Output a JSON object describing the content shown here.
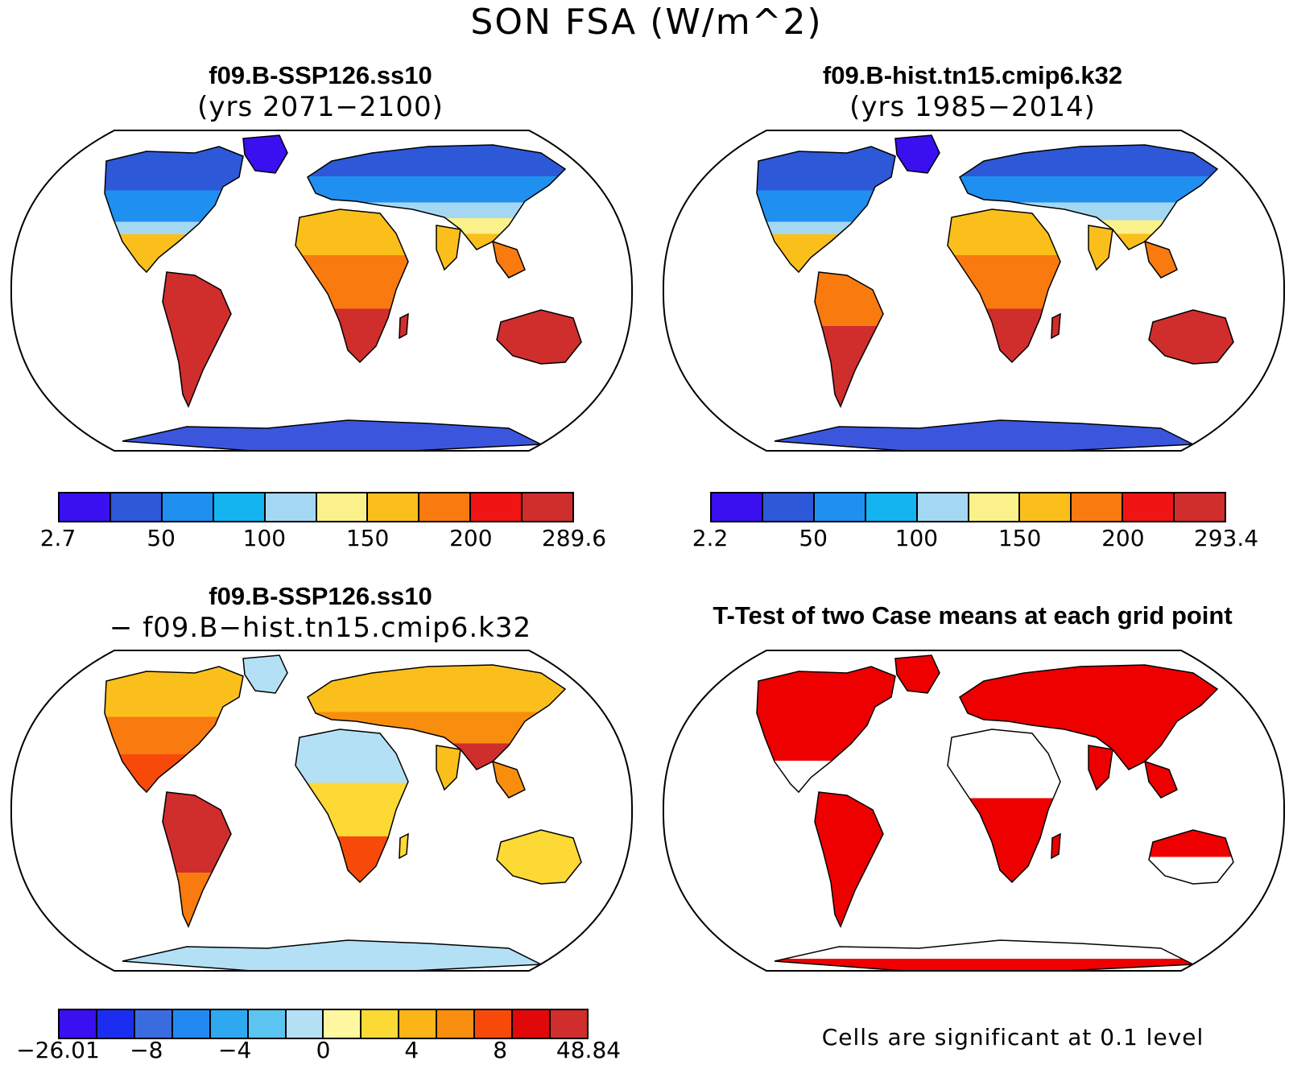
{
  "title": "SON FSA (W/m^2)",
  "panels": {
    "future": {
      "case": "f09.B-SSP126.ss10",
      "years": "(yrs 2071−2100)",
      "colorbar": {
        "colors": [
          "#3a0ff0",
          "#2d58d8",
          "#1f8ff0",
          "#14b4f0",
          "#a4d8f2",
          "#fbf18a",
          "#fbbf1c",
          "#f97a0f",
          "#f01414",
          "#d02d2d"
        ],
        "labels": [
          "2.7",
          "50",
          "100",
          "150",
          "200",
          "289.6"
        ]
      }
    },
    "hist": {
      "case": "f09.B-hist.tn15.cmip6.k32",
      "years": "(yrs 1985−2014)",
      "colorbar": {
        "colors": [
          "#3a0ff0",
          "#2d58d8",
          "#1f8ff0",
          "#14b4f0",
          "#a4d8f2",
          "#fbf18a",
          "#fbbf1c",
          "#f97a0f",
          "#f01414",
          "#d02d2d"
        ],
        "labels": [
          "2.2",
          "50",
          "100",
          "150",
          "200",
          "293.4"
        ]
      }
    },
    "diff": {
      "case": "f09.B-SSP126.ss10",
      "minus": "− f09.B−hist.tn15.cmip6.k32",
      "colorbar": {
        "colors": [
          "#3a0ff0",
          "#1a2df0",
          "#3a6ce0",
          "#2288f2",
          "#2ea8ee",
          "#5cc4f0",
          "#b4e0f5",
          "#fff8a0",
          "#fcd934",
          "#fbb516",
          "#f98e0e",
          "#f74a0a",
          "#e00808",
          "#d02d2d"
        ],
        "labels": [
          "−26.01",
          "−8",
          "−4",
          "0",
          "4",
          "8",
          "48.84"
        ]
      }
    },
    "ttest": {
      "title": "T-Test of two Case means at each grid point",
      "note": "Cells are significant at 0.1 level"
    }
  },
  "colors": {
    "ocean": "#ffffff",
    "land_outline": "#000000",
    "significant": "#ee0000",
    "antarctica": "#3b56dd"
  }
}
